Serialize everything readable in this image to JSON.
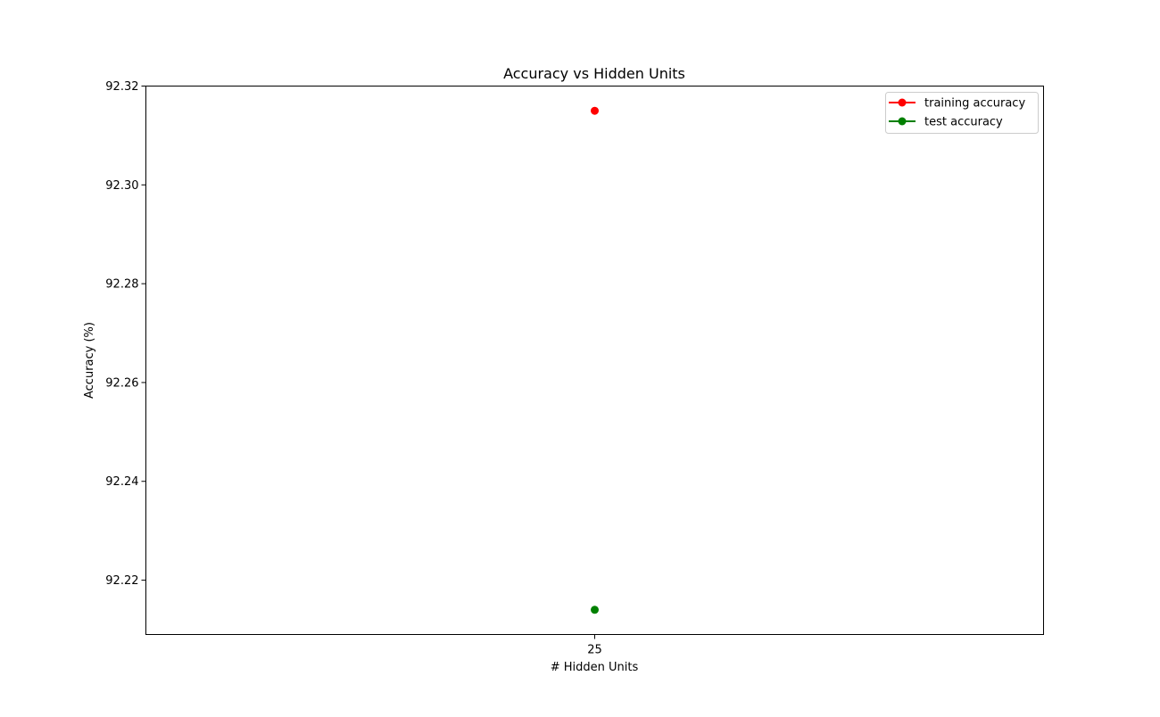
{
  "chart_data": {
    "type": "line",
    "title": "Accuracy vs Hidden Units",
    "xlabel": "# Hidden Units",
    "ylabel": "Accuracy (%)",
    "x": [
      25
    ],
    "x_tick_labels": [
      "25"
    ],
    "ylim": [
      92.209,
      92.32
    ],
    "y_ticks": [
      92.22,
      92.24,
      92.26,
      92.28,
      92.3,
      92.32
    ],
    "y_tick_labels": [
      "92.22",
      "92.24",
      "92.26",
      "92.28",
      "92.30",
      "92.32"
    ],
    "grid": false,
    "legend_position": "top-right",
    "series": [
      {
        "name": "training accuracy",
        "color": "#ff0000",
        "marker": "circle",
        "values": [
          92.315
        ]
      },
      {
        "name": "test accuracy",
        "color": "#008000",
        "marker": "circle",
        "values": [
          92.214
        ]
      }
    ]
  }
}
